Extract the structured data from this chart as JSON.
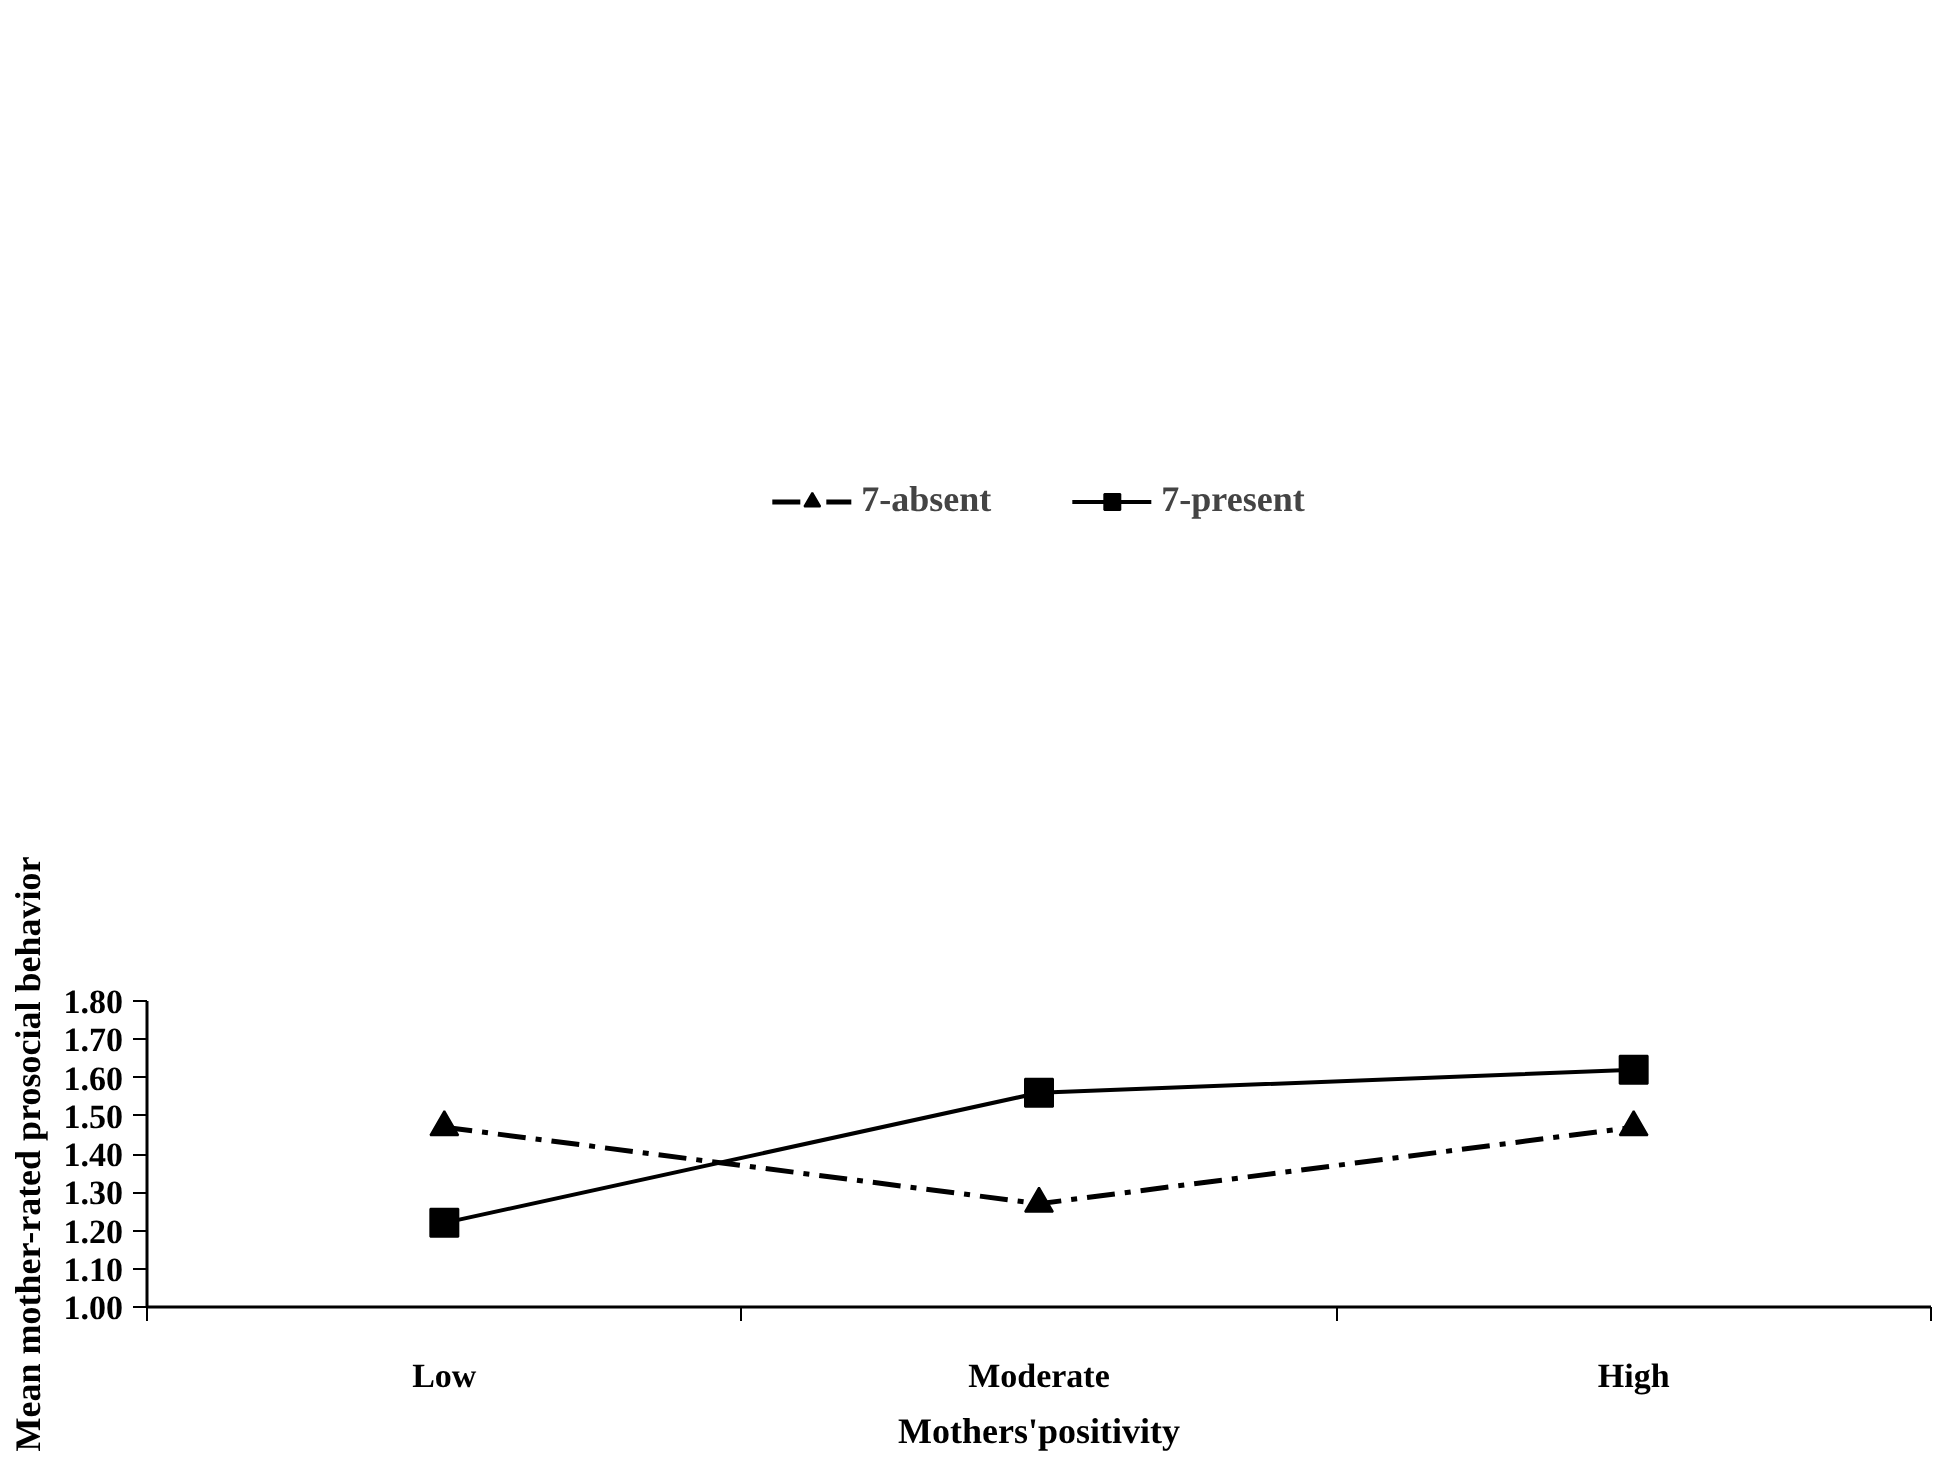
{
  "chart_data": {
    "type": "line",
    "xlabel": "Mothers'positivity",
    "ylabel": "Mean mother-rated prosocial behavior",
    "categories": [
      "Low",
      "Moderate",
      "High"
    ],
    "series": [
      {
        "name": "7-absent",
        "color": "#000000",
        "values": [
          1.47,
          1.27,
          1.47
        ],
        "marker": "triangle",
        "line_style": "dashed"
      },
      {
        "name": "7-present",
        "color": "#000000",
        "values": [
          1.22,
          1.56,
          1.62
        ],
        "marker": "square",
        "line_style": "solid"
      }
    ],
    "ylim": [
      1.0,
      1.8
    ],
    "yticks": [
      {
        "value": 1.0,
        "label": "1.00"
      },
      {
        "value": 1.1,
        "label": "1.10"
      },
      {
        "value": 1.2,
        "label": "1.20"
      },
      {
        "value": 1.3,
        "label": "1.30"
      },
      {
        "value": 1.4,
        "label": "1.40"
      },
      {
        "value": 1.5,
        "label": "1.50"
      },
      {
        "value": 1.6,
        "label": "1.60"
      },
      {
        "value": 1.7,
        "label": "1.70"
      },
      {
        "value": 1.8,
        "label": "1.80"
      }
    ],
    "grid": false,
    "legend": "top"
  }
}
